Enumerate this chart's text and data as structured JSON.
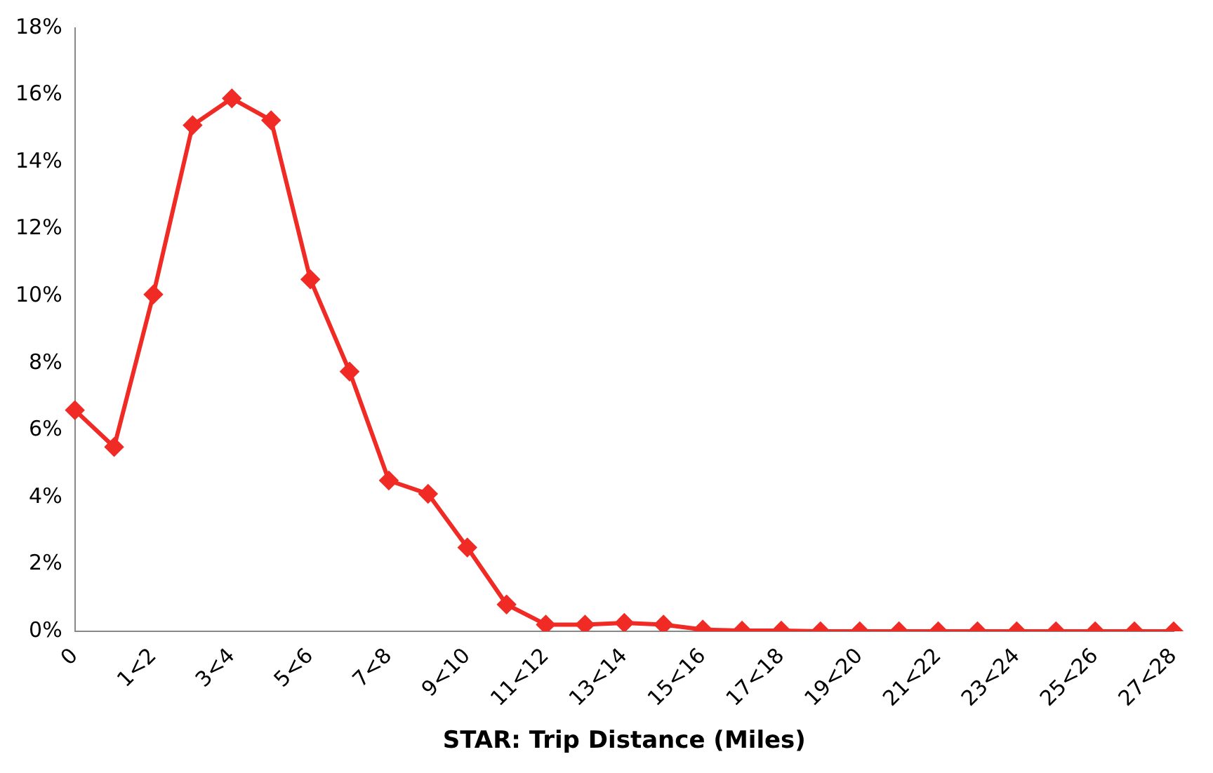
{
  "chart_data": {
    "type": "line",
    "xlabel": "STAR: Trip Distance (Miles)",
    "categories": [
      "0",
      null,
      "1<2",
      null,
      "3<4",
      null,
      "5<6",
      null,
      "7<8",
      null,
      "9<10",
      null,
      "11<12",
      null,
      "13<14",
      null,
      "15<16",
      null,
      "17<18",
      null,
      "19<20",
      null,
      "21<22",
      null,
      "23<24",
      null,
      "25<26",
      null,
      "27<28"
    ],
    "series": [
      {
        "color": "#f02a24",
        "values": [
          6.6,
          5.5,
          10.05,
          15.1,
          15.9,
          15.25,
          10.5,
          7.75,
          4.5,
          4.1,
          2.5,
          0.8,
          0.2,
          0.2,
          0.25,
          0.2,
          0.05,
          0.02,
          0.02,
          0,
          0,
          0,
          0,
          0,
          0,
          0,
          0,
          0,
          0
        ]
      }
    ],
    "ylim": [
      0,
      18
    ],
    "yticks": [
      {
        "value": 0,
        "label": "0%"
      },
      {
        "value": 2,
        "label": "2%"
      },
      {
        "value": 4,
        "label": "4%"
      },
      {
        "value": 6,
        "label": "6%"
      },
      {
        "value": 8,
        "label": "8%"
      },
      {
        "value": 10,
        "label": "10%"
      },
      {
        "value": 12,
        "label": "12%"
      },
      {
        "value": 14,
        "label": "14%"
      },
      {
        "value": 16,
        "label": "16%"
      },
      {
        "value": 18,
        "label": "18%"
      }
    ],
    "grid": false,
    "legend": false,
    "marker": "diamond",
    "line_style": "solid"
  }
}
